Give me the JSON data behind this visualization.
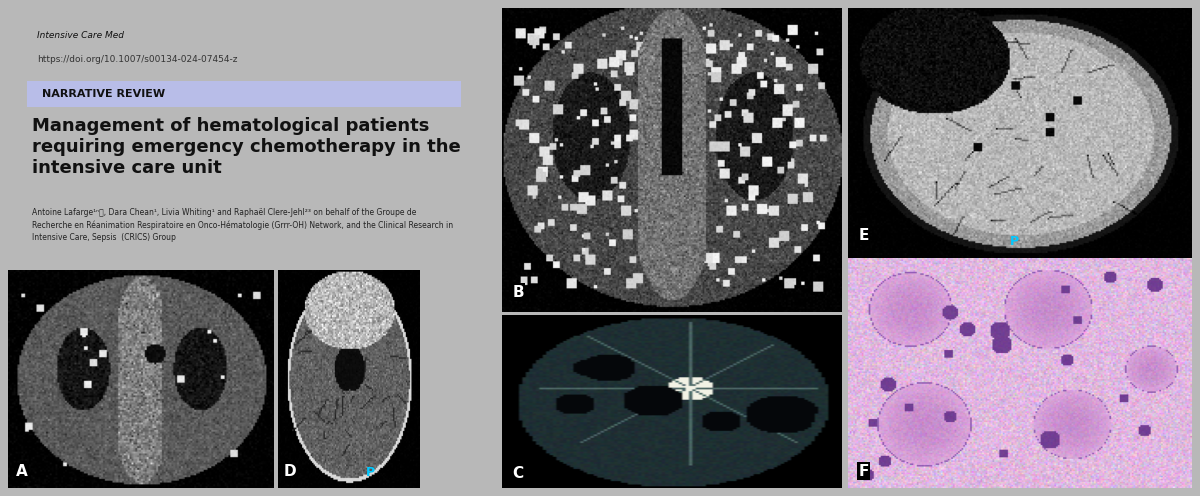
{
  "outer_bg": "#b8b8b8",
  "paper_bg": "#ffffff",
  "journal_line1": "Intensive Care Med",
  "journal_line2": "https://doi.org/10.1007/s00134-024-07454-z",
  "narrative_review_text": "NARRATIVE REVIEW",
  "narrative_bg": "#b8bde8",
  "title_line1": "Management of hematological patients",
  "title_line2": "requiring emergency chemotherapy in the",
  "title_line3": "intensive care unit",
  "authors_line1": "Antoine Lafarge¹ⁿⓄ, Dara Chean¹, Livia Whiting¹ and Raphaël Clere-Jehl²³ on behalf of the Groupe de",
  "authors_line2": "Recherche en Réanimation Respiratoire en Onco-Hématologie (Grrr-OH) Network, and the Clinical Research in",
  "authors_line3": "Intensive Care, Sepsis  (CRICS) Group",
  "label_color_white": "#ffffff",
  "label_color_cyan": "#00c8ff",
  "label_bg": "#000000",
  "img_dark_bg": "#0a0a0a",
  "img_mid_bg": "#181818"
}
